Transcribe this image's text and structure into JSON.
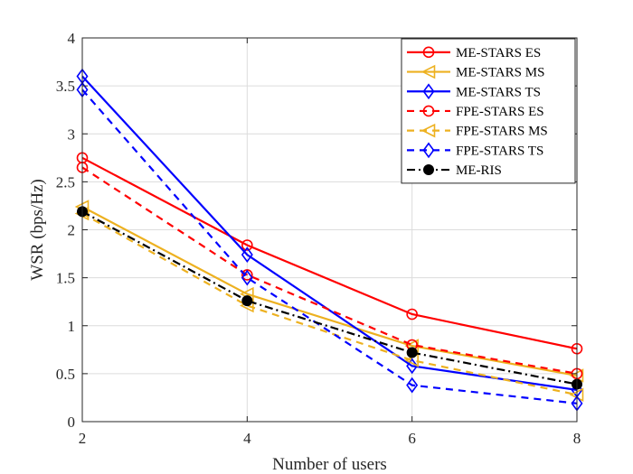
{
  "chart_data": {
    "type": "line",
    "title": "",
    "xlabel": "Number of users",
    "ylabel": "WSR (bps/Hz)",
    "x": [
      2,
      4,
      6,
      8
    ],
    "xlim": [
      2,
      8
    ],
    "ylim": [
      0,
      4
    ],
    "xticks": [
      "2",
      "4",
      "6",
      "8"
    ],
    "yticks": [
      "0",
      "0.5",
      "1",
      "1.5",
      "2",
      "2.5",
      "3",
      "3.5",
      "4"
    ],
    "grid": true,
    "legend_position": "top-right",
    "series": [
      {
        "name": "ME-STARS ES",
        "values": [
          2.75,
          1.84,
          1.12,
          0.76
        ],
        "color": "#ff0000",
        "dash": "solid",
        "marker": "circle-open"
      },
      {
        "name": "ME-STARS MS",
        "values": [
          2.24,
          1.33,
          0.79,
          0.48
        ],
        "color": "#edb120",
        "dash": "solid",
        "marker": "triangle-left"
      },
      {
        "name": "ME-STARS TS",
        "values": [
          3.6,
          1.74,
          0.58,
          0.33
        ],
        "color": "#0000ff",
        "dash": "solid",
        "marker": "diamond"
      },
      {
        "name": "FPE-STARS ES",
        "values": [
          2.65,
          1.53,
          0.8,
          0.5
        ],
        "color": "#ff0000",
        "dash": "dashed",
        "marker": "circle-open"
      },
      {
        "name": "FPE-STARS MS",
        "values": [
          2.17,
          1.21,
          0.64,
          0.28
        ],
        "color": "#edb120",
        "dash": "dashed",
        "marker": "triangle-left"
      },
      {
        "name": "FPE-STARS TS",
        "values": [
          3.46,
          1.5,
          0.38,
          0.19
        ],
        "color": "#0000ff",
        "dash": "dashed",
        "marker": "diamond"
      },
      {
        "name": "ME-RIS",
        "values": [
          2.19,
          1.26,
          0.72,
          0.39
        ],
        "color": "#000000",
        "dash": "dashdot",
        "marker": "circle-filled"
      }
    ]
  }
}
